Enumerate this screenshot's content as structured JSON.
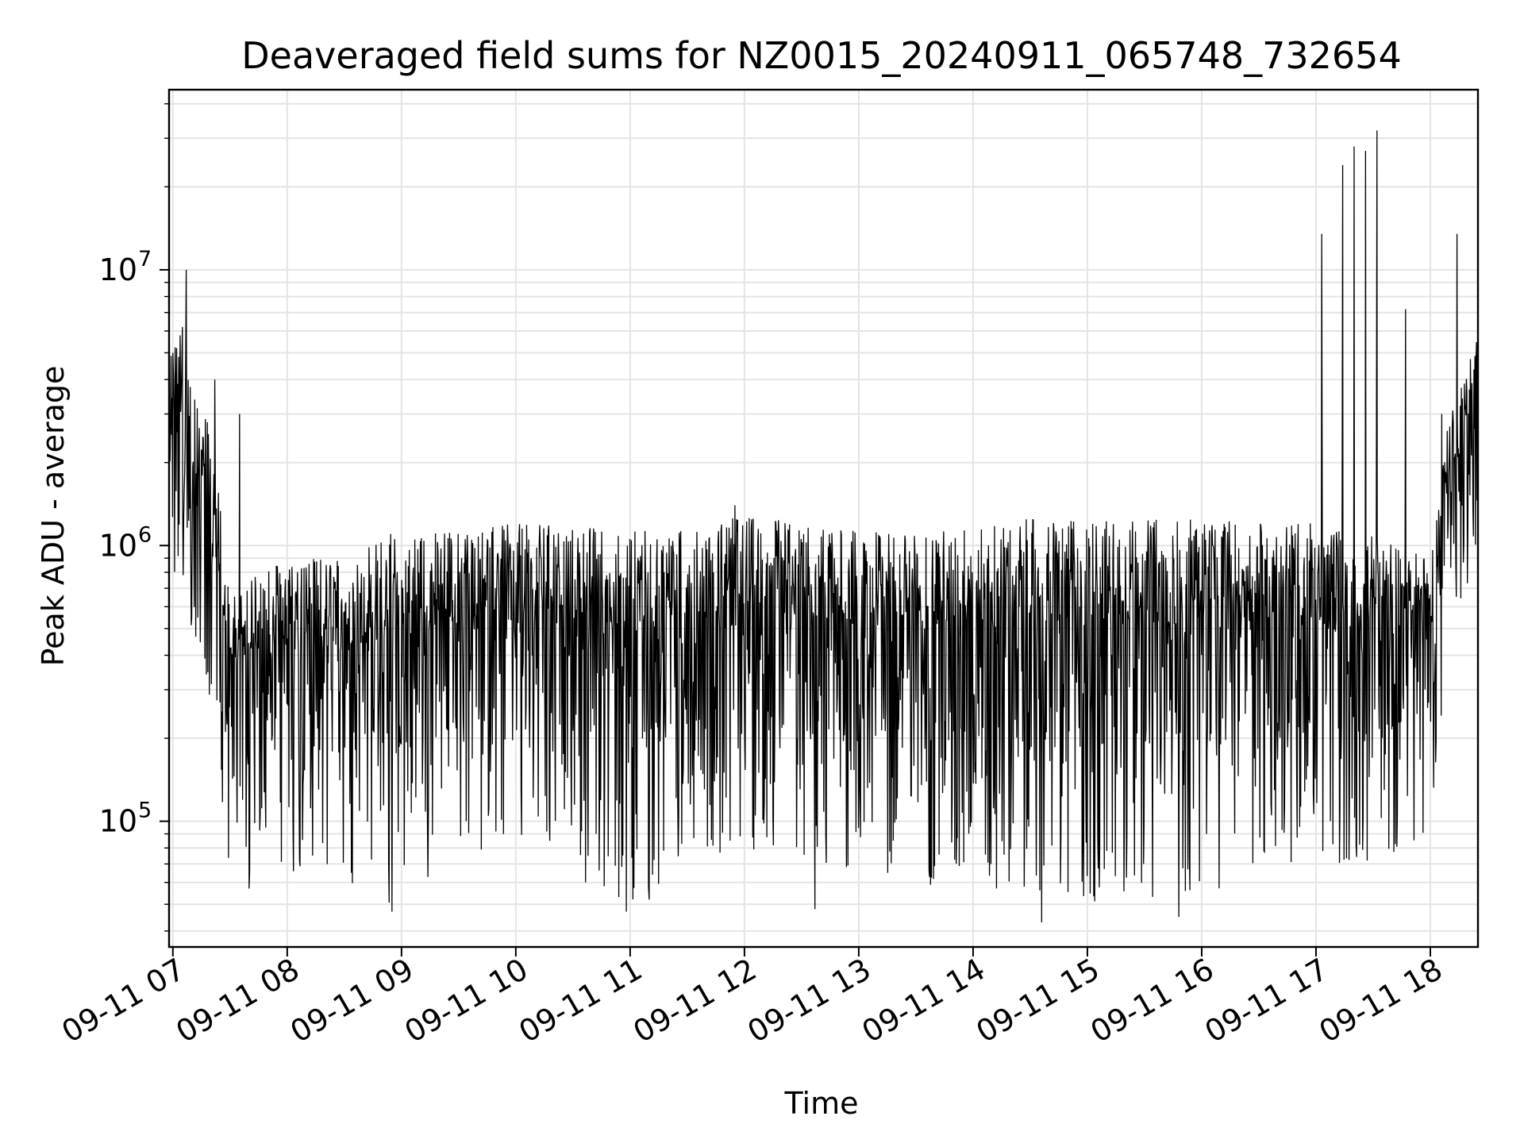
{
  "chart_data": {
    "type": "line",
    "title": "Deaveraged field sums for NZ0015_20240911_065748_732654",
    "xlabel": "Time",
    "ylabel": "Peak ADU - average",
    "y_scale": "log",
    "ylim": [
      35000,
      45000000
    ],
    "x_range_hours": [
      "2024-09-11 06:58",
      "2024-09-11 18:25"
    ],
    "x_tick_labels": [
      "09-11 07",
      "09-11 08",
      "09-11 09",
      "09-11 10",
      "09-11 11",
      "09-11 12",
      "09-11 13",
      "09-11 14",
      "09-11 15",
      "09-11 16",
      "09-11 17",
      "09-11 18"
    ],
    "y_tick_labels": [
      {
        "base": "10",
        "exp": "5",
        "value": 100000
      },
      {
        "base": "10",
        "exp": "6",
        "value": 1000000
      },
      {
        "base": "10",
        "exp": "7",
        "value": 10000000
      }
    ],
    "grid": true,
    "legend": "none",
    "series": [
      {
        "color": "#000000",
        "envelope": [
          {
            "t": "06:58",
            "low": 650000,
            "high": 4800000
          },
          {
            "t": "07:05",
            "low": 700000,
            "high": 6200000
          },
          {
            "t": "07:10",
            "low": 450000,
            "high": 3500000
          },
          {
            "t": "07:20",
            "low": 210000,
            "high": 3000000
          },
          {
            "t": "07:30",
            "low": 65000,
            "high": 700000
          },
          {
            "t": "08:00",
            "low": 60000,
            "high": 900000
          },
          {
            "t": "08:30",
            "low": 62000,
            "high": 900000
          },
          {
            "t": "08:50",
            "low": 48000,
            "high": 1100000
          },
          {
            "t": "09:30",
            "low": 70000,
            "high": 1150000
          },
          {
            "t": "10:00",
            "low": 85000,
            "high": 1200000
          },
          {
            "t": "10:30",
            "low": 60000,
            "high": 1200000
          },
          {
            "t": "11:00",
            "low": 50000,
            "high": 1150000
          },
          {
            "t": "11:30",
            "low": 70000,
            "high": 1150000
          },
          {
            "t": "12:00",
            "low": 80000,
            "high": 1300000
          },
          {
            "t": "12:30",
            "low": 70000,
            "high": 1200000
          },
          {
            "t": "13:00",
            "low": 65000,
            "high": 1150000
          },
          {
            "t": "13:30",
            "low": 60000,
            "high": 1100000
          },
          {
            "t": "14:00",
            "low": 55000,
            "high": 1200000
          },
          {
            "t": "14:30",
            "low": 50000,
            "high": 1250000
          },
          {
            "t": "15:00",
            "low": 50000,
            "high": 1250000
          },
          {
            "t": "15:30",
            "low": 52000,
            "high": 1250000
          },
          {
            "t": "16:00",
            "low": 55000,
            "high": 1250000
          },
          {
            "t": "16:30",
            "low": 60000,
            "high": 1250000
          },
          {
            "t": "17:00",
            "low": 65000,
            "high": 1200000
          },
          {
            "t": "17:30",
            "low": 70000,
            "high": 1100000
          },
          {
            "t": "18:00",
            "low": 90000,
            "high": 900000
          },
          {
            "t": "18:10",
            "low": 500000,
            "high": 3000000
          },
          {
            "t": "18:25",
            "low": 900000,
            "high": 6000000
          }
        ],
        "spikes": [
          {
            "t": "07:00",
            "value": 5000000
          },
          {
            "t": "07:05",
            "value": 6200000
          },
          {
            "t": "07:07",
            "value": 10000000
          },
          {
            "t": "07:22",
            "value": 4000000
          },
          {
            "t": "07:35",
            "value": 3000000
          },
          {
            "t": "07:40",
            "value": 57000
          },
          {
            "t": "08:55",
            "value": 47000
          },
          {
            "t": "10:58",
            "value": 47000
          },
          {
            "t": "11:10",
            "value": 52000
          },
          {
            "t": "11:55",
            "value": 1400000
          },
          {
            "t": "12:37",
            "value": 48000
          },
          {
            "t": "14:36",
            "value": 43000
          },
          {
            "t": "15:48",
            "value": 45000
          },
          {
            "t": "17:03",
            "value": 13500000
          },
          {
            "t": "17:14",
            "value": 24000000
          },
          {
            "t": "17:20",
            "value": 28000000
          },
          {
            "t": "17:26",
            "value": 27000000
          },
          {
            "t": "17:32",
            "value": 32000000
          },
          {
            "t": "17:47",
            "value": 7200000
          },
          {
            "t": "18:06",
            "value": 3000000
          },
          {
            "t": "18:14",
            "value": 13500000
          }
        ]
      }
    ]
  }
}
